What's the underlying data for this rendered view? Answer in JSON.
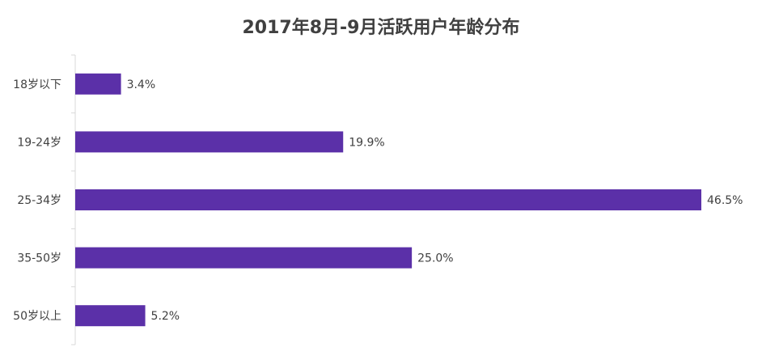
{
  "chart_data": {
    "type": "bar",
    "orientation": "horizontal",
    "title": "2017年8月-9月活跃用户年龄分布",
    "xlabel": "",
    "ylabel": "",
    "categories": [
      "18岁以下",
      "19-24岁",
      "25-34岁",
      "35-50岁",
      "50岁以上"
    ],
    "values": [
      3.4,
      19.9,
      46.5,
      25.0,
      5.2
    ],
    "data_labels": [
      "3.4%",
      "19.9%",
      "46.5%",
      "25.0%",
      "5.2%"
    ],
    "xlim": [
      0,
      46.5
    ],
    "grid": false,
    "legend": "none",
    "colors": {
      "bar": "#5b30a8",
      "axis": "#d9d9d9",
      "text": "#404040"
    }
  }
}
